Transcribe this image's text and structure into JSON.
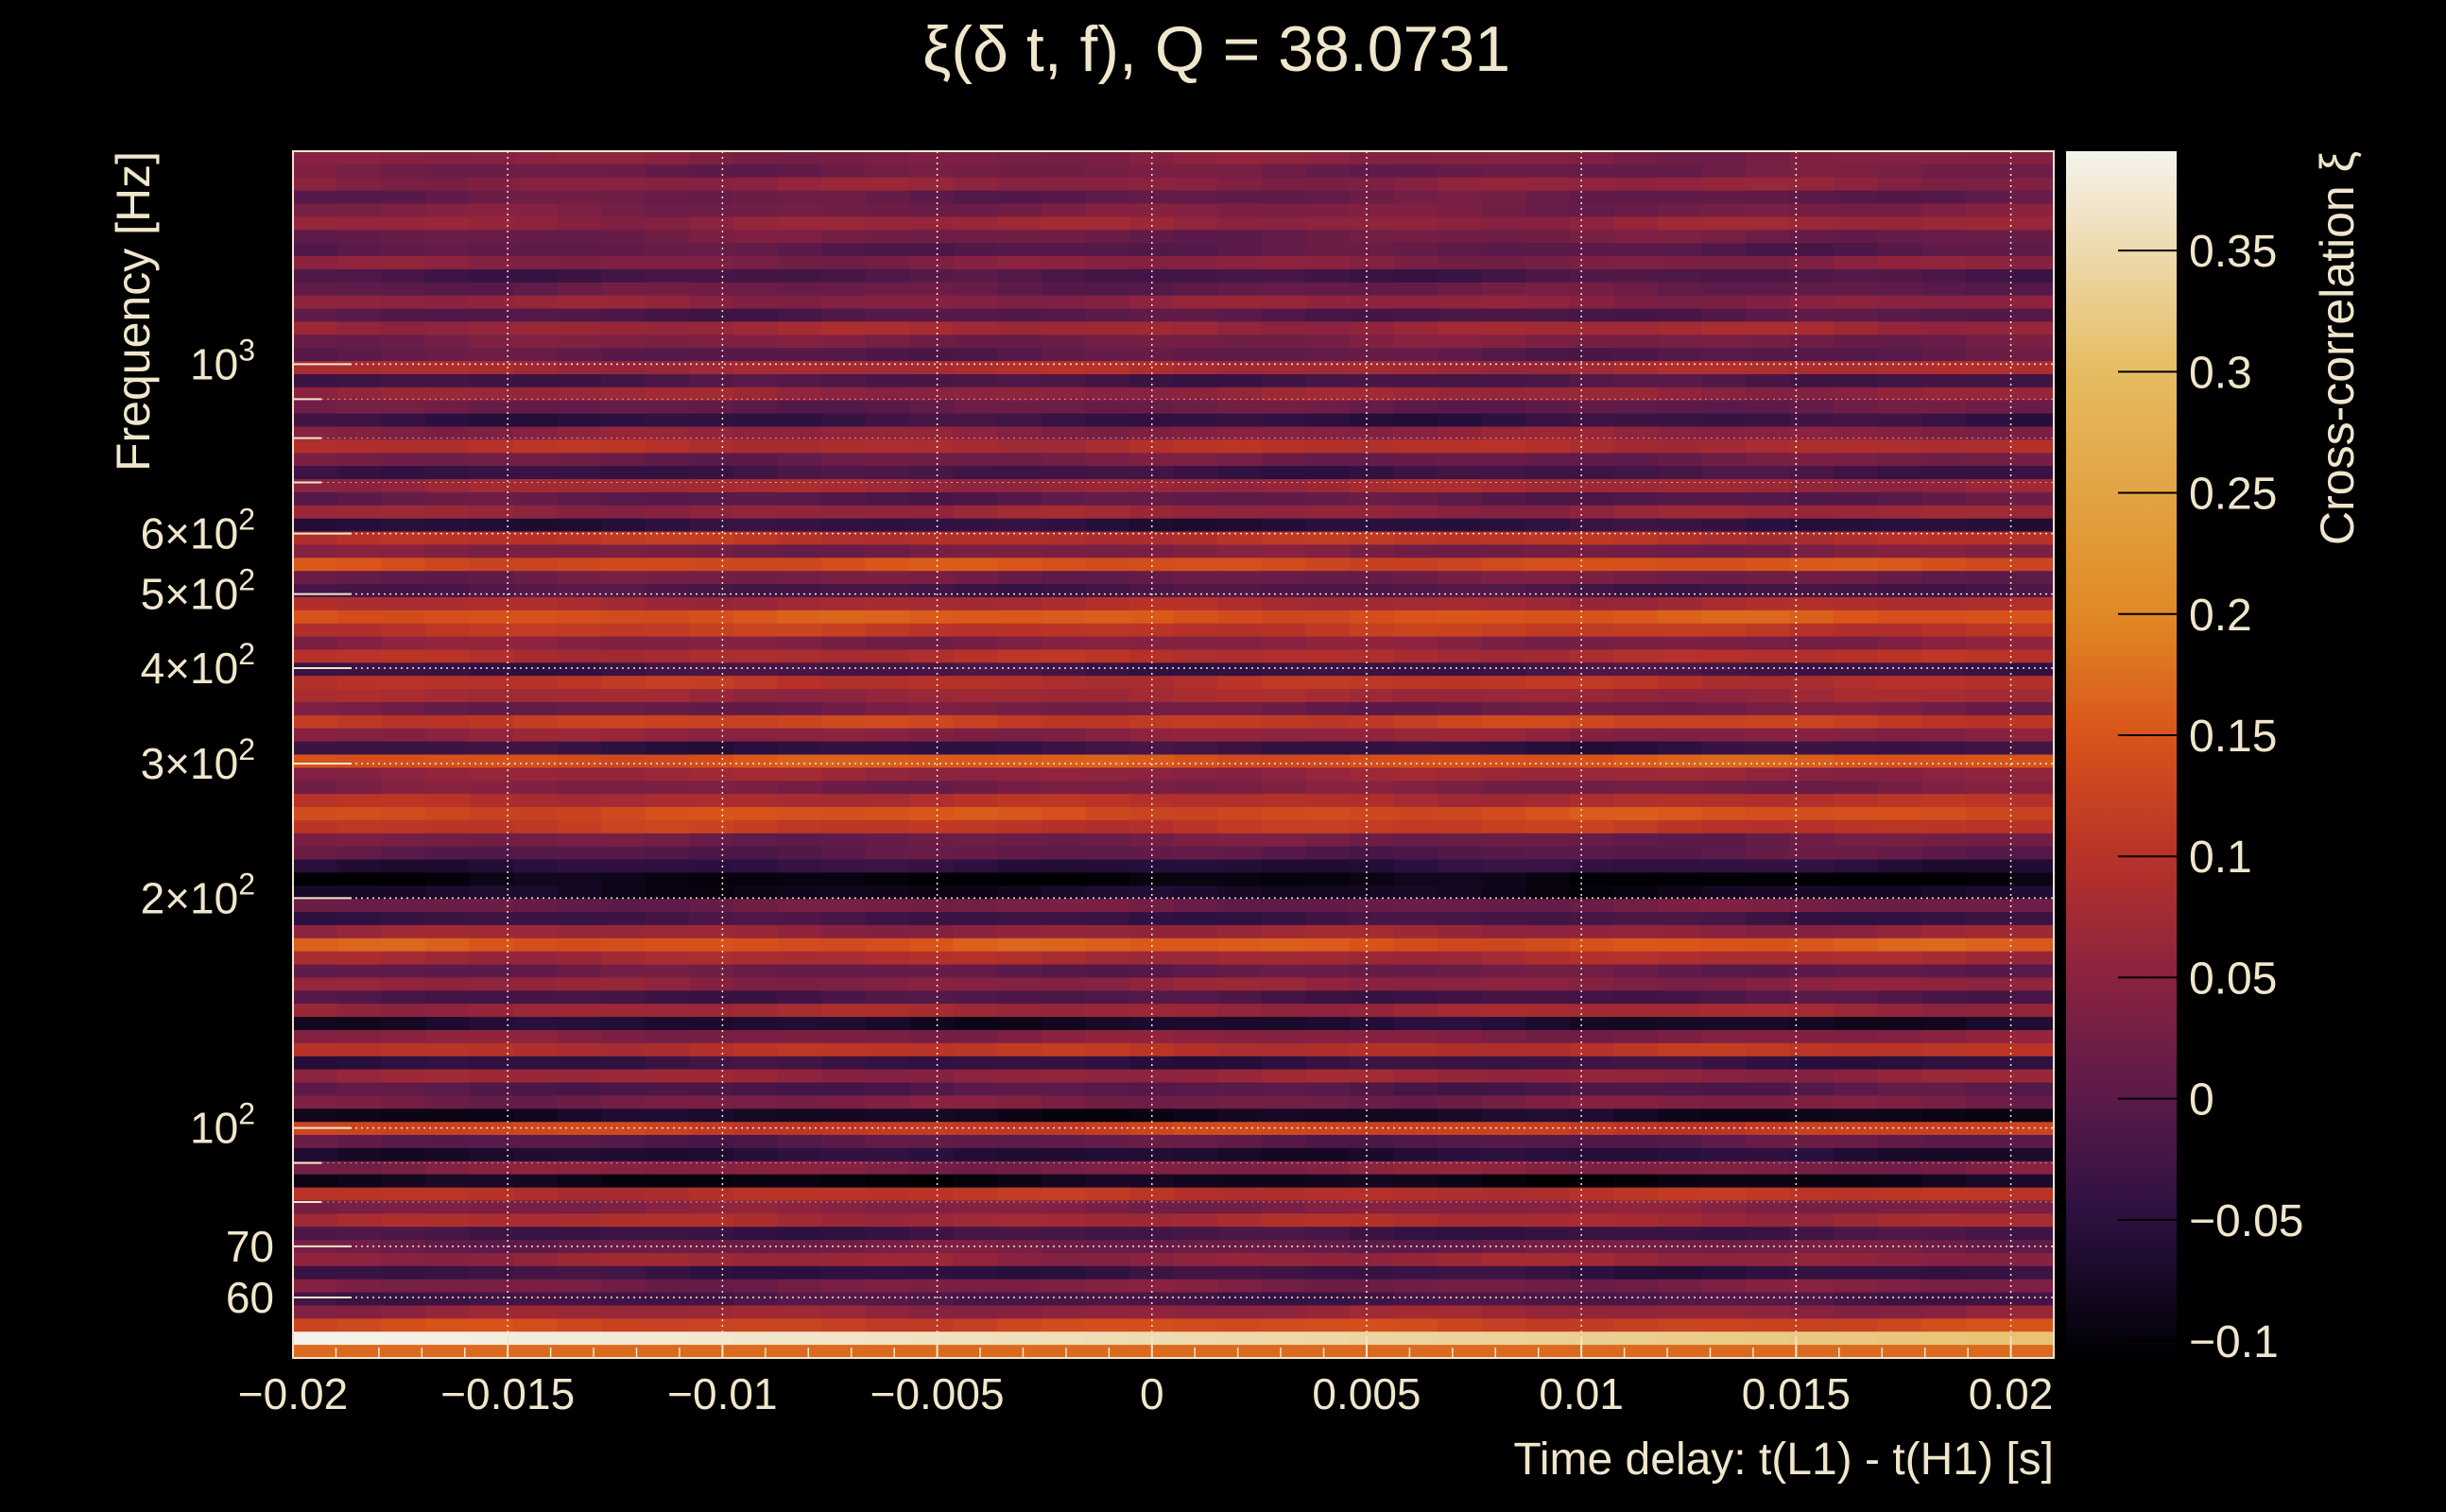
{
  "chart_data": {
    "type": "heatmap",
    "title": "ξ(δ t, f), Q = 38.0731",
    "xlabel": "Time delay: t(L1) - t(H1) [s]",
    "ylabel": "Frequency [Hz]",
    "colorbar_label": "Cross-correlation ξ",
    "xlim": [
      -0.02,
      0.021
    ],
    "ylim": [
      50,
      1900
    ],
    "yscale": "log",
    "clim": [
      -0.107,
      0.391
    ],
    "grid": true,
    "x_ticks": [
      {
        "value": -0.02,
        "label": "−0.02"
      },
      {
        "value": -0.015,
        "label": "−0.015"
      },
      {
        "value": -0.01,
        "label": "−0.01"
      },
      {
        "value": -0.005,
        "label": "−0.005"
      },
      {
        "value": 0,
        "label": "0"
      },
      {
        "value": 0.005,
        "label": "0.005"
      },
      {
        "value": 0.01,
        "label": "0.01"
      },
      {
        "value": 0.015,
        "label": "0.015"
      },
      {
        "value": 0.02,
        "label": "0.02"
      }
    ],
    "y_ticks": [
      {
        "value": 1000,
        "base": "10",
        "exp": "3",
        "mult": ""
      },
      {
        "value": 600,
        "base": "10",
        "exp": "2",
        "mult": "6×"
      },
      {
        "value": 500,
        "base": "10",
        "exp": "2",
        "mult": "5×"
      },
      {
        "value": 400,
        "base": "10",
        "exp": "2",
        "mult": "4×"
      },
      {
        "value": 300,
        "base": "10",
        "exp": "2",
        "mult": "3×"
      },
      {
        "value": 200,
        "base": "10",
        "exp": "2",
        "mult": "2×"
      },
      {
        "value": 100,
        "base": "10",
        "exp": "2",
        "mult": ""
      },
      {
        "value": 70,
        "base": "70",
        "exp": "",
        "mult": ""
      },
      {
        "value": 60,
        "base": "60",
        "exp": "",
        "mult": ""
      }
    ],
    "y_minor_ticks": [
      900,
      800,
      700,
      90,
      80
    ],
    "colorbar_ticks": [
      {
        "value": 0.35,
        "label": "0.35"
      },
      {
        "value": 0.3,
        "label": "0.3"
      },
      {
        "value": 0.25,
        "label": "0.25"
      },
      {
        "value": 0.2,
        "label": "0.2"
      },
      {
        "value": 0.15,
        "label": "0.15"
      },
      {
        "value": 0.1,
        "label": "0.1"
      },
      {
        "value": 0.05,
        "label": "0.05"
      },
      {
        "value": 0,
        "label": "0"
      },
      {
        "value": -0.05,
        "label": "−0.05"
      },
      {
        "value": -0.1,
        "label": "−0.1"
      }
    ],
    "n_time_bins": 40,
    "row_values_top_to_bottom": [
      0.04,
      0.02,
      0.05,
      0.01,
      0.03,
      0.06,
      0.02,
      0.0,
      0.04,
      -0.02,
      0.01,
      0.05,
      -0.01,
      0.07,
      0.03,
      0.0,
      0.08,
      -0.02,
      0.06,
      0.01,
      -0.04,
      0.05,
      0.09,
      0.02,
      -0.03,
      0.07,
      0.0,
      0.06,
      -0.05,
      0.1,
      0.03,
      0.14,
      0.02,
      -0.02,
      0.08,
      0.15,
      0.11,
      0.04,
      0.09,
      -0.03,
      0.1,
      0.07,
      0.02,
      0.12,
      0.05,
      -0.04,
      0.15,
      0.06,
      0.03,
      0.09,
      0.14,
      0.11,
      0.02,
      0.0,
      -0.05,
      -0.1,
      -0.08,
      0.02,
      -0.03,
      0.06,
      0.15,
      0.08,
      0.01,
      0.05,
      -0.02,
      0.07,
      -0.07,
      0.04,
      0.1,
      -0.04,
      0.06,
      -0.01,
      0.03,
      -0.08,
      0.12,
      0.0,
      -0.06,
      0.04,
      -0.09,
      0.1,
      0.04,
      0.08,
      -0.03,
      0.02,
      0.06,
      -0.04,
      0.03,
      -0.02,
      0.06,
      0.13,
      0.39,
      0.17
    ],
    "colormap": [
      "#000004",
      "#2a1040",
      "#5a1a4a",
      "#8a2240",
      "#b83228",
      "#d9541a",
      "#e08a25",
      "#e5bc60",
      "#f5f3ee"
    ],
    "colormap_values": [
      -0.107,
      -0.05,
      0.0,
      0.05,
      0.1,
      0.15,
      0.2,
      0.3,
      0.391
    ]
  }
}
